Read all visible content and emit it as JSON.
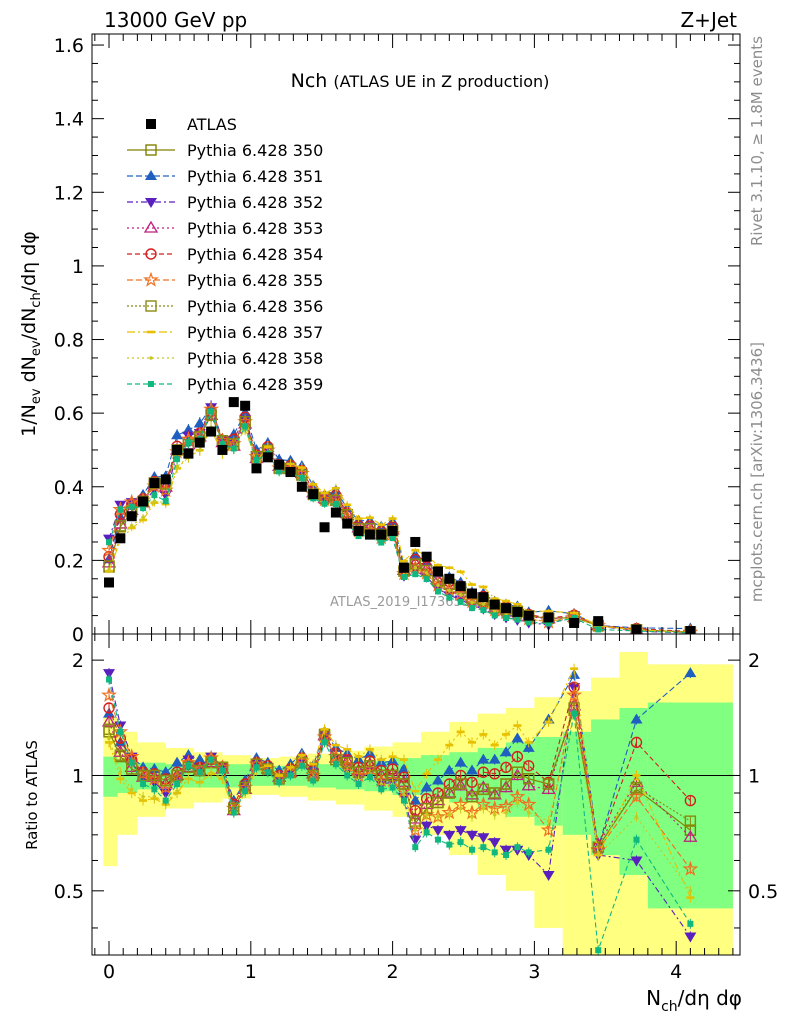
{
  "header": {
    "left": "13000 GeV pp",
    "right": "Z+Jet"
  },
  "side_text": {
    "rivet": "Rivet 3.1.10, ≥ 1.8M events",
    "mcplots": "mcplots.cern.ch [arXiv:1306.3436]"
  },
  "watermark": "ATLAS_2019_I1736531",
  "colors": {
    "data": "#000000",
    "band_outer": "#ffff80",
    "band_inner": "#80ff80",
    "s350": "#808000",
    "s351": "#1f5fbf",
    "s352": "#5a1fbf",
    "s353": "#bf1f7f",
    "s354": "#d42020",
    "s355": "#f07020",
    "s356": "#8a8a10",
    "s357": "#e8c000",
    "s358": "#c8c820",
    "s359": "#10b880"
  },
  "chart_data": [
    {
      "type": "scatter",
      "title": "Nch",
      "subtitle": "(ATLAS UE in Z production)",
      "xlabel": "",
      "ylabel": "1/N_ev dN_ev/dN_ch/dη dφ",
      "xlim": [
        -0.12,
        4.45
      ],
      "ylim": [
        0,
        1.63
      ],
      "yticks": [
        0,
        0.2,
        0.4,
        0.6,
        0.8,
        1,
        1.2,
        1.4,
        1.6
      ],
      "ytick_labels": [
        "0",
        "0.2",
        "0.4",
        "0.6",
        "0.8",
        "1",
        "1.2",
        "1.4",
        "1.6"
      ],
      "legend": {
        "placement": "top-left",
        "entries": [
          "ATLAS",
          "Pythia 6.428 350",
          "Pythia 6.428 351",
          "Pythia 6.428 352",
          "Pythia 6.428 353",
          "Pythia 6.428 354",
          "Pythia 6.428 355",
          "Pythia 6.428 356",
          "Pythia 6.428 357",
          "Pythia 6.428 358",
          "Pythia 6.428 359"
        ]
      },
      "x": [
        0.0,
        0.08,
        0.16,
        0.24,
        0.32,
        0.4,
        0.48,
        0.56,
        0.64,
        0.72,
        0.8,
        0.88,
        0.96,
        1.04,
        1.12,
        1.2,
        1.28,
        1.36,
        1.44,
        1.52,
        1.6,
        1.68,
        1.76,
        1.84,
        1.92,
        2.0,
        2.08,
        2.16,
        2.24,
        2.32,
        2.4,
        2.48,
        2.56,
        2.64,
        2.72,
        2.8,
        2.88,
        2.96,
        3.1,
        3.28,
        3.45,
        3.72,
        4.1
      ],
      "data": [
        0.14,
        0.26,
        0.32,
        0.36,
        0.41,
        0.42,
        0.5,
        0.49,
        0.52,
        0.55,
        0.5,
        0.63,
        0.62,
        0.45,
        0.48,
        0.46,
        0.44,
        0.4,
        0.38,
        0.29,
        0.33,
        0.3,
        0.28,
        0.27,
        0.27,
        0.28,
        0.18,
        0.25,
        0.21,
        0.17,
        0.15,
        0.13,
        0.11,
        0.1,
        0.08,
        0.07,
        0.06,
        0.05,
        0.045,
        0.03,
        0.035,
        0.012,
        0.008
      ],
      "series": [
        {
          "name": "Pythia 6.428 350",
          "key": "s350",
          "marker": "open-square",
          "dash": "",
          "r": [
            1.3,
            1.12,
            1.04,
            1.0,
            1.0,
            0.97,
            1.0,
            1.05,
            1.03,
            1.08,
            1.05,
            0.82,
            0.93,
            1.07,
            1.04,
            0.98,
            1.02,
            1.08,
            1.0,
            1.28,
            1.1,
            1.08,
            1.02,
            1.06,
            1.0,
            1.0,
            0.95,
            0.75,
            0.82,
            0.85,
            0.9,
            0.95,
            0.88,
            0.92,
            0.9,
            0.95,
            1.02,
            0.98,
            0.95,
            1.48,
            0.65,
            0.92,
            0.72
          ]
        },
        {
          "name": "Pythia 6.428 351",
          "key": "s351",
          "marker": "triangle-up",
          "dash": "6,3",
          "r": [
            1.45,
            1.22,
            1.12,
            1.05,
            1.04,
            1.02,
            1.08,
            1.13,
            1.1,
            1.12,
            1.06,
            0.86,
            0.97,
            1.11,
            1.08,
            1.03,
            1.07,
            1.14,
            1.06,
            1.3,
            1.18,
            1.14,
            1.1,
            1.14,
            1.08,
            1.09,
            1.04,
            0.86,
            0.93,
            0.97,
            1.03,
            1.08,
            1.03,
            1.1,
            1.1,
            1.15,
            1.25,
            1.18,
            1.4,
            1.83,
            0.65,
            1.4,
            1.85
          ]
        },
        {
          "name": "Pythia 6.428 352",
          "key": "s352",
          "marker": "triangle-down",
          "dash": "6,3,2,3",
          "r": [
            1.85,
            1.35,
            1.12,
            0.98,
            0.96,
            0.9,
            0.98,
            1.1,
            1.05,
            1.12,
            1.05,
            0.82,
            0.94,
            1.08,
            1.05,
            0.98,
            1.02,
            1.08,
            0.99,
            1.24,
            1.1,
            1.03,
            0.98,
            1.02,
            0.95,
            0.96,
            0.88,
            0.68,
            0.74,
            0.72,
            0.7,
            0.72,
            0.7,
            0.69,
            0.67,
            0.64,
            0.64,
            0.62,
            0.55,
            1.7,
            0.62,
            0.6,
            0.38
          ]
        },
        {
          "name": "Pythia 6.428 353",
          "key": "s353",
          "marker": "open-triangle-up",
          "dash": "2,3",
          "r": [
            1.38,
            1.15,
            1.05,
            0.99,
            0.99,
            0.95,
            1.0,
            1.05,
            1.03,
            1.08,
            1.04,
            0.81,
            0.92,
            1.06,
            1.04,
            0.99,
            1.02,
            1.09,
            1.01,
            1.27,
            1.11,
            1.09,
            1.03,
            1.07,
            1.0,
            1.01,
            0.96,
            0.77,
            0.84,
            0.86,
            0.9,
            0.94,
            0.89,
            0.93,
            0.89,
            0.93,
            1.0,
            0.94,
            0.92,
            1.52,
            0.66,
            0.96,
            0.69
          ]
        },
        {
          "name": "Pythia 6.428 354",
          "key": "s354",
          "marker": "open-circle",
          "dash": "5,3",
          "r": [
            1.5,
            1.25,
            1.1,
            1.02,
            1.01,
            0.98,
            1.02,
            1.07,
            1.05,
            1.1,
            1.05,
            0.84,
            0.95,
            1.08,
            1.06,
            1.0,
            1.04,
            1.11,
            1.03,
            1.28,
            1.14,
            1.1,
            1.05,
            1.09,
            1.03,
            1.04,
            0.99,
            0.81,
            0.87,
            0.9,
            0.95,
            1.0,
            0.96,
            1.02,
            1.01,
            1.05,
            1.12,
            1.06,
            0.96,
            1.7,
            0.65,
            1.22,
            0.86
          ]
        },
        {
          "name": "Pythia 6.428 355",
          "key": "s355",
          "marker": "open-star",
          "dash": "6,3",
          "r": [
            1.62,
            1.3,
            1.12,
            1.01,
            0.98,
            0.93,
            0.99,
            1.08,
            1.04,
            1.11,
            1.05,
            0.82,
            0.93,
            1.07,
            1.04,
            0.98,
            1.02,
            1.09,
            1.0,
            1.26,
            1.12,
            1.06,
            1.0,
            1.04,
            0.97,
            0.97,
            0.91,
            0.72,
            0.79,
            0.78,
            0.8,
            0.84,
            0.8,
            0.84,
            0.82,
            0.83,
            0.88,
            0.84,
            0.72,
            1.62,
            0.64,
            0.88,
            0.57
          ]
        },
        {
          "name": "Pythia 6.428 356",
          "key": "s356",
          "marker": "open-square",
          "dash": "2,2",
          "r": [
            1.32,
            1.13,
            1.04,
            1.0,
            1.0,
            0.97,
            1.0,
            1.05,
            1.03,
            1.08,
            1.05,
            0.82,
            0.93,
            1.07,
            1.04,
            0.98,
            1.02,
            1.08,
            1.0,
            1.27,
            1.1,
            1.08,
            1.02,
            1.06,
            1.0,
            1.0,
            0.95,
            0.76,
            0.82,
            0.85,
            0.9,
            0.95,
            0.88,
            0.92,
            0.9,
            0.95,
            1.02,
            0.98,
            0.95,
            1.5,
            0.65,
            0.93,
            0.76
          ]
        },
        {
          "name": "Pythia 6.428 357",
          "key": "s357",
          "marker": "dash",
          "dash": "8,3,2,3",
          "r": [
            1.22,
            0.98,
            0.9,
            0.86,
            0.87,
            0.84,
            0.9,
            0.98,
            0.96,
            1.01,
            0.98,
            0.8,
            0.9,
            1.04,
            1.06,
            1.0,
            1.05,
            1.13,
            1.07,
            1.32,
            1.2,
            1.17,
            1.12,
            1.17,
            1.1,
            1.12,
            1.1,
            0.91,
            1.01,
            1.1,
            1.2,
            1.3,
            1.22,
            1.28,
            1.2,
            1.28,
            1.35,
            1.22,
            1.38,
            1.9,
            0.62,
            1.0,
            0.48
          ]
        },
        {
          "name": "Pythia 6.428 358",
          "key": "s358",
          "marker": "dot",
          "dash": "2,3",
          "r": [
            1.25,
            1.02,
            0.92,
            0.88,
            0.88,
            0.85,
            0.91,
            0.98,
            0.96,
            1.02,
            0.99,
            0.8,
            0.9,
            1.03,
            1.02,
            0.96,
            1.0,
            1.06,
            0.98,
            1.22,
            1.08,
            1.02,
            0.97,
            1.01,
            0.95,
            0.95,
            0.89,
            0.72,
            0.79,
            0.78,
            0.79,
            0.82,
            0.78,
            0.82,
            0.79,
            0.8,
            0.85,
            0.8,
            0.76,
            1.45,
            0.62,
            0.78,
            0.5
          ]
        },
        {
          "name": "Pythia 6.428 359",
          "key": "s359",
          "marker": "small-square",
          "dash": "5,3",
          "r": [
            1.78,
            1.3,
            1.08,
            0.95,
            0.92,
            0.86,
            0.95,
            1.06,
            1.02,
            1.1,
            1.03,
            0.8,
            0.91,
            1.05,
            1.02,
            0.96,
            1.0,
            1.06,
            0.97,
            1.22,
            1.07,
            1.0,
            0.95,
            0.99,
            0.92,
            0.93,
            0.86,
            0.65,
            0.71,
            0.68,
            0.66,
            0.67,
            0.64,
            0.65,
            0.63,
            0.62,
            0.65,
            0.63,
            0.64,
            1.45,
            0.35,
            0.68,
            0.41
          ]
        }
      ]
    },
    {
      "type": "scatter",
      "xlabel": "N_ch/dη dφ",
      "ylabel": "Ratio to ATLAS",
      "xlim": [
        -0.12,
        4.45
      ],
      "ylim": [
        0.34,
        2.34
      ],
      "yticks": [
        0.5,
        1,
        2
      ],
      "ytick_labels": [
        "0.5",
        "1",
        "2"
      ],
      "xticks": [
        0,
        1,
        2,
        3,
        4
      ],
      "xtick_labels": [
        "0",
        "1",
        "2",
        "3",
        "4"
      ],
      "bands": {
        "edges": [
          -0.04,
          0.06,
          0.2,
          0.4,
          0.6,
          0.8,
          1.0,
          1.2,
          1.4,
          1.6,
          1.8,
          2.0,
          2.2,
          2.4,
          2.6,
          2.8,
          3.0,
          3.2,
          3.4,
          3.6,
          3.8,
          4.4
        ],
        "inner_lo": [
          0.88,
          0.9,
          0.92,
          0.93,
          0.93,
          0.93,
          0.94,
          0.94,
          0.93,
          0.92,
          0.91,
          0.89,
          0.87,
          0.85,
          0.82,
          0.78,
          0.74,
          0.7,
          0.62,
          0.55,
          0.45
        ],
        "inner_hi": [
          1.12,
          1.1,
          1.08,
          1.07,
          1.07,
          1.07,
          1.06,
          1.06,
          1.07,
          1.08,
          1.09,
          1.11,
          1.13,
          1.15,
          1.18,
          1.22,
          1.26,
          1.3,
          1.4,
          1.5,
          1.55
        ],
        "outer_lo": [
          0.58,
          0.7,
          0.78,
          0.82,
          0.85,
          0.87,
          0.89,
          0.88,
          0.86,
          0.84,
          0.81,
          0.78,
          0.7,
          0.62,
          0.55,
          0.5,
          0.4,
          0.34,
          0.34,
          0.34,
          0.34
        ],
        "outer_hi": [
          1.42,
          1.3,
          1.22,
          1.18,
          1.15,
          1.13,
          1.11,
          1.12,
          1.14,
          1.16,
          1.19,
          1.22,
          1.3,
          1.38,
          1.45,
          1.5,
          1.6,
          1.66,
          1.8,
          2.1,
          1.95
        ]
      }
    }
  ]
}
